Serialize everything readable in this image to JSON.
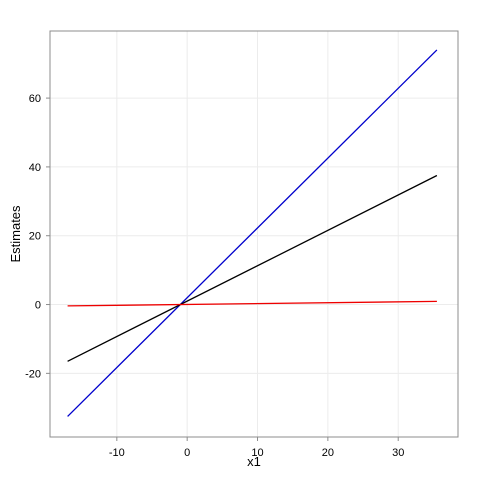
{
  "chart_data": {
    "type": "line",
    "title": "",
    "xlabel": "x1",
    "ylabel": "Estimates",
    "xlim": [
      -19.5,
      38.5
    ],
    "ylim": [
      -38.5,
      79.5
    ],
    "xticks": [
      -10,
      0,
      10,
      20,
      30
    ],
    "yticks": [
      -20,
      0,
      20,
      40,
      60
    ],
    "xtick_labels": [
      "-10",
      "0",
      "10",
      "20",
      "30"
    ],
    "ytick_labels": [
      "-20",
      "0",
      "20",
      "40",
      "60"
    ],
    "grid": true,
    "legend": "none",
    "series": [
      {
        "color": "#0000cc",
        "x": [
          -17,
          35.5
        ],
        "y": [
          -32.5,
          74
        ]
      },
      {
        "color": "#000000",
        "x": [
          -17,
          35.5
        ],
        "y": [
          -16.5,
          37.5
        ]
      },
      {
        "color": "#ee0000",
        "x": [
          -17,
          35.5
        ],
        "y": [
          -0.4,
          0.9
        ]
      }
    ]
  }
}
